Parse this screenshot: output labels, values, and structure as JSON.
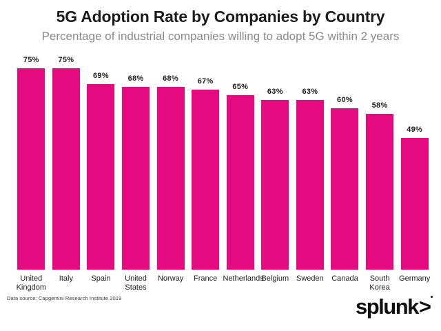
{
  "chart_data": {
    "type": "bar",
    "title": "5G Adoption Rate by Companies by Country",
    "subtitle": "Percentage of industrial companies willing to adopt 5G within 2 years",
    "categories": [
      "United Kingdom",
      "Italy",
      "Spain",
      "United States",
      "Norway",
      "France",
      "Netherlands",
      "Belgium",
      "Sweden",
      "Canada",
      "South Korea",
      "Germany"
    ],
    "values": [
      75,
      75,
      69,
      68,
      68,
      67,
      65,
      63,
      63,
      60,
      58,
      49
    ],
    "value_labels": [
      "75%",
      "75%",
      "69%",
      "68%",
      "68%",
      "67%",
      "65%",
      "63%",
      "63%",
      "60%",
      "58%",
      "49%"
    ],
    "xlabel": "",
    "ylabel": "",
    "ylim": [
      0,
      80
    ],
    "grid": false,
    "legend": "none",
    "bar_color": "#e60a80"
  },
  "footer": {
    "source": "Data source: Capgemini Research Institute 2019"
  },
  "logo": {
    "text": "splunk",
    "arrow": ">"
  }
}
